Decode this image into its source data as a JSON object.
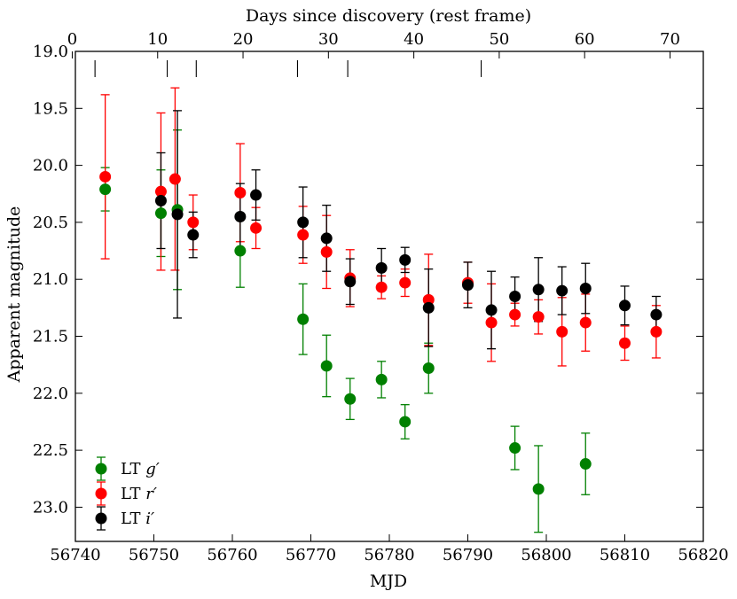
{
  "chart_data": {
    "type": "scatter",
    "xlabel": "MJD",
    "ylabel": "Apparent magnitude",
    "top_xlabel": "Days since discovery (rest frame)",
    "xlim": [
      56740,
      56820
    ],
    "ylim": [
      23.3,
      19.0
    ],
    "x_ticks": [
      "56740",
      "56750",
      "56760",
      "56770",
      "56780",
      "56790",
      "56800",
      "56810",
      "56820"
    ],
    "y_ticks": [
      "19.0",
      "19.5",
      "20.0",
      "20.5",
      "21.0",
      "21.5",
      "22.0",
      "22.5",
      "23.0"
    ],
    "top_ticks": [
      "0",
      "10",
      "20",
      "30",
      "40",
      "50",
      "60",
      "70"
    ],
    "top_axis": {
      "mjd_at_zero": 56739.6,
      "mjd_per_day": 1.088
    },
    "spectra_epochs_mjd": [
      56742.5,
      56751.7,
      56755.4,
      56768.3,
      56774.7,
      56791.7
    ],
    "legend_position": "bottom-left",
    "series": [
      {
        "name": "LT g′",
        "label": "LT",
        "band": "g′",
        "color": "#008000",
        "x": [
          56743.8,
          56750.9,
          56753.0,
          56761.0,
          56769.0,
          56772.0,
          56775.0,
          56779.0,
          56782.0,
          56785.0,
          56796.0,
          56799.0,
          56805.0
        ],
        "y": [
          20.21,
          20.42,
          20.39,
          20.75,
          21.35,
          21.76,
          22.05,
          21.88,
          22.25,
          21.78,
          22.48,
          22.84,
          22.62
        ],
        "yerr": [
          0.19,
          0.38,
          0.7,
          0.32,
          0.31,
          0.27,
          0.18,
          0.16,
          0.15,
          0.22,
          0.19,
          0.38,
          0.27
        ]
      },
      {
        "name": "LT r′",
        "label": "LT",
        "band": "r′",
        "color": "#ff0000",
        "x": [
          56743.8,
          56750.9,
          56752.7,
          56755.0,
          56761.0,
          56763.0,
          56769.0,
          56772.0,
          56775.0,
          56779.0,
          56782.0,
          56785.0,
          56790.0,
          56793.0,
          56796.0,
          56799.0,
          56802.0,
          56805.0,
          56810.0,
          56814.0
        ],
        "y": [
          20.1,
          20.23,
          20.12,
          20.5,
          20.24,
          20.55,
          20.61,
          20.76,
          20.99,
          21.07,
          21.03,
          21.18,
          21.03,
          21.38,
          21.31,
          21.33,
          21.46,
          21.38,
          21.56,
          21.46
        ],
        "yerr": [
          0.72,
          0.69,
          0.8,
          0.24,
          0.43,
          0.18,
          0.25,
          0.32,
          0.25,
          0.1,
          0.12,
          0.4,
          0.18,
          0.34,
          0.1,
          0.15,
          0.3,
          0.25,
          0.15,
          0.23
        ]
      },
      {
        "name": "LT i′",
        "label": "LT",
        "band": "i′",
        "color": "#000000",
        "x": [
          56750.9,
          56753.0,
          56755.0,
          56761.0,
          56763.0,
          56769.0,
          56772.0,
          56775.0,
          56779.0,
          56782.0,
          56785.0,
          56790.0,
          56793.0,
          56796.0,
          56799.0,
          56802.0,
          56805.0,
          56810.0,
          56814.0
        ],
        "y": [
          20.31,
          20.43,
          20.61,
          20.45,
          20.26,
          20.5,
          20.64,
          21.02,
          20.9,
          20.83,
          21.25,
          21.05,
          21.27,
          21.15,
          21.09,
          21.1,
          21.08,
          21.23,
          21.31
        ],
        "yerr": [
          0.42,
          0.91,
          0.2,
          0.29,
          0.22,
          0.31,
          0.29,
          0.2,
          0.17,
          0.11,
          0.34,
          0.2,
          0.34,
          0.17,
          0.28,
          0.21,
          0.22,
          0.17,
          0.16
        ]
      }
    ]
  }
}
